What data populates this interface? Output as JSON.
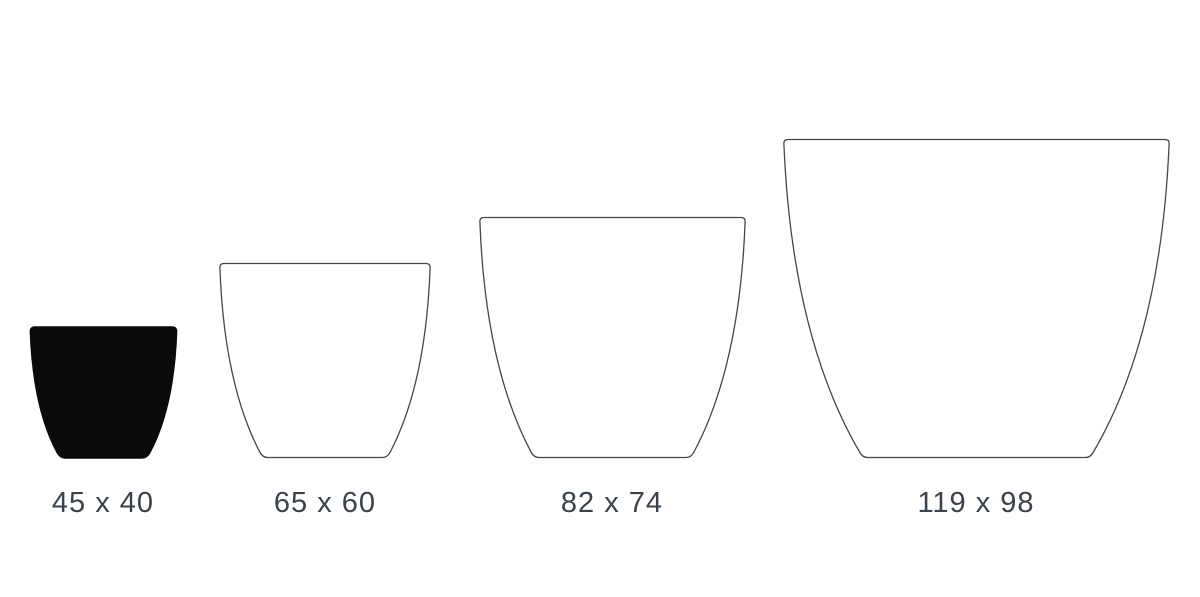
{
  "figure": {
    "kind": "planter-size-comparison",
    "unit_separator": "x"
  },
  "pots": [
    {
      "label": "45 x 40",
      "width_cm": 45,
      "height_cm": 40,
      "style": "filled"
    },
    {
      "label": "65 x 60",
      "width_cm": 65,
      "height_cm": 60,
      "style": "outline"
    },
    {
      "label": "82 x 74",
      "width_cm": 82,
      "height_cm": 74,
      "style": "outline"
    },
    {
      "label": "119 x 98",
      "width_cm": 119,
      "height_cm": 98,
      "style": "outline"
    }
  ],
  "colors": {
    "filled_pot": "#0a0a0a",
    "outline_stroke": "#42474d",
    "label_text": "#3a424b",
    "background": "#ffffff"
  }
}
